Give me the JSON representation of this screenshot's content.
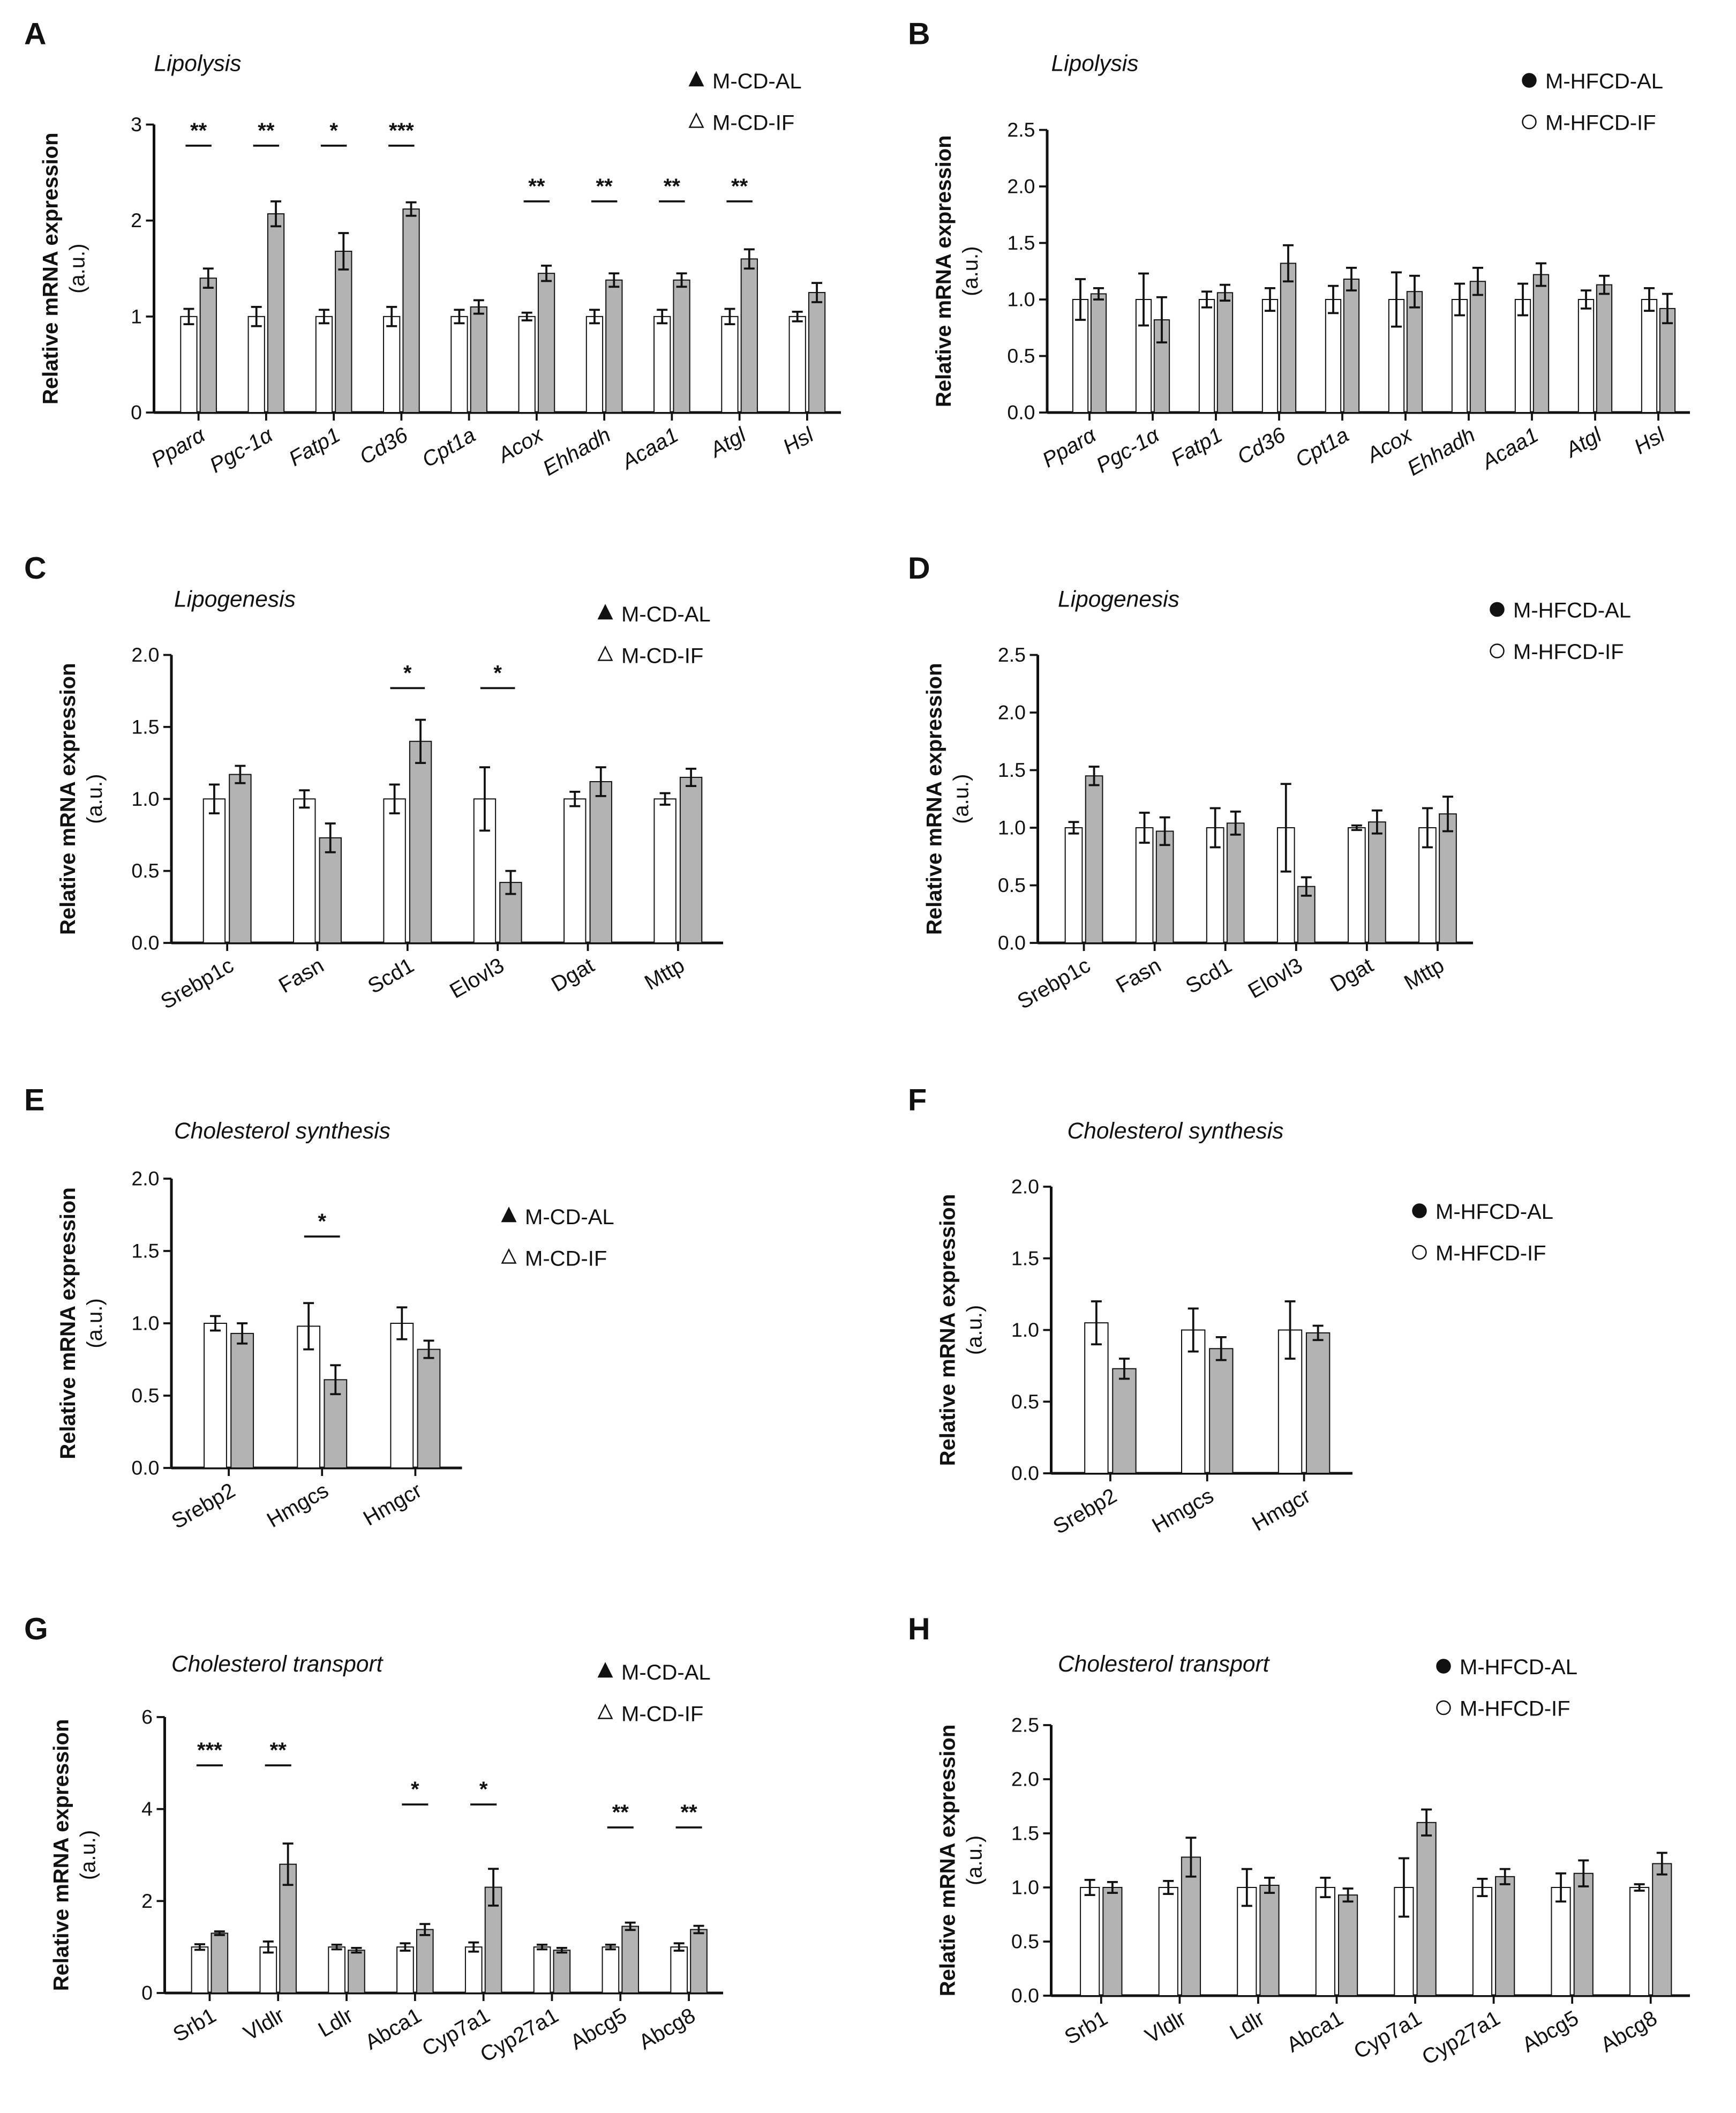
{
  "colors": {
    "al_fill": "#ffffff",
    "if_fill": "#b3b3b3",
    "stroke": "#111111"
  },
  "chart_data": [
    {
      "panel": "A",
      "type": "bar",
      "title": "Lipolysis",
      "ylabel": "Relative mRNA expression",
      "ylabel2": "(a.u.)",
      "ylim": [
        0,
        3
      ],
      "yticks": [
        "0",
        "1",
        "2",
        "3"
      ],
      "italic_x": true,
      "legend": [
        "M-CD-AL",
        "M-CD-IF"
      ],
      "marker": "triangle",
      "categories": [
        "Pparα",
        "Pgc-1α",
        "Fatp1",
        "Cd36",
        "Cpt1a",
        "Acox",
        "Ehhadh",
        "Acaa1",
        "Atgl",
        "Hsl"
      ],
      "series": [
        {
          "name": "M-CD-AL",
          "values": [
            1.0,
            1.0,
            1.0,
            1.0,
            1.0,
            1.0,
            1.0,
            1.0,
            1.0,
            1.0
          ],
          "sem": [
            0.08,
            0.1,
            0.07,
            0.1,
            0.07,
            0.04,
            0.07,
            0.07,
            0.08,
            0.05
          ]
        },
        {
          "name": "M-CD-IF",
          "values": [
            1.4,
            2.07,
            1.68,
            2.12,
            1.1,
            1.45,
            1.38,
            1.38,
            1.6,
            1.25
          ],
          "sem": [
            0.1,
            0.13,
            0.19,
            0.07,
            0.07,
            0.08,
            0.07,
            0.07,
            0.1,
            0.1
          ]
        }
      ],
      "significance": [
        "**",
        "**",
        "*",
        "***",
        "",
        "**",
        "**",
        "**",
        "**",
        ""
      ]
    },
    {
      "panel": "B",
      "type": "bar",
      "title": "Lipolysis",
      "ylabel": "Relative mRNA expression",
      "ylabel2": "(a.u.)",
      "ylim": [
        0,
        2.5
      ],
      "yticks": [
        "0.0",
        "0.5",
        "1.0",
        "1.5",
        "2.0",
        "2.5"
      ],
      "italic_x": true,
      "legend": [
        "M-HFCD-AL",
        "M-HFCD-IF"
      ],
      "marker": "circle",
      "categories": [
        "Pparα",
        "Pgc-1α",
        "Fatp1",
        "Cd36",
        "Cpt1a",
        "Acox",
        "Ehhadh",
        "Acaa1",
        "Atgl",
        "Hsl"
      ],
      "series": [
        {
          "name": "M-HFCD-AL",
          "values": [
            1.0,
            1.0,
            1.0,
            1.0,
            1.0,
            1.0,
            1.0,
            1.0,
            1.0,
            1.0
          ],
          "sem": [
            0.18,
            0.23,
            0.07,
            0.1,
            0.12,
            0.24,
            0.14,
            0.14,
            0.08,
            0.1
          ]
        },
        {
          "name": "M-HFCD-IF",
          "values": [
            1.05,
            0.82,
            1.06,
            1.32,
            1.18,
            1.07,
            1.16,
            1.22,
            1.13,
            0.92
          ],
          "sem": [
            0.05,
            0.2,
            0.07,
            0.16,
            0.1,
            0.14,
            0.12,
            0.1,
            0.08,
            0.13
          ]
        }
      ],
      "significance": [
        "",
        "",
        "",
        "",
        "",
        "",
        "",
        "",
        "",
        ""
      ]
    },
    {
      "panel": "C",
      "type": "bar",
      "title": "Lipogenesis",
      "ylabel": "Relative mRNA expression",
      "ylabel2": "(a.u.)",
      "ylim": [
        0,
        2
      ],
      "yticks": [
        "0.0",
        "0.5",
        "1.0",
        "1.5",
        "2.0"
      ],
      "italic_x": false,
      "legend": [
        "M-CD-AL",
        "M-CD-IF"
      ],
      "marker": "triangle",
      "categories": [
        "Srebp1c",
        "Fasn",
        "Scd1",
        "Elovl3",
        "Dgat",
        "Mttp"
      ],
      "series": [
        {
          "name": "M-CD-AL",
          "values": [
            1.0,
            1.0,
            1.0,
            1.0,
            1.0,
            1.0
          ],
          "sem": [
            0.1,
            0.06,
            0.1,
            0.22,
            0.05,
            0.04
          ]
        },
        {
          "name": "M-CD-IF",
          "values": [
            1.17,
            0.73,
            1.4,
            0.42,
            1.12,
            1.15
          ],
          "sem": [
            0.06,
            0.1,
            0.15,
            0.08,
            0.1,
            0.06
          ]
        }
      ],
      "significance": [
        "",
        "",
        "*",
        "*",
        "",
        ""
      ]
    },
    {
      "panel": "D",
      "type": "bar",
      "title": "Lipogenesis",
      "ylabel": "Relative mRNA expression",
      "ylabel2": "(a.u.)",
      "ylim": [
        0,
        2.5
      ],
      "yticks": [
        "0.0",
        "0.5",
        "1.0",
        "1.5",
        "2.0",
        "2.5"
      ],
      "italic_x": false,
      "legend": [
        "M-HFCD-AL",
        "M-HFCD-IF"
      ],
      "marker": "circle",
      "categories": [
        "Srebp1c",
        "Fasn",
        "Scd1",
        "Elovl3",
        "Dgat",
        "Mttp"
      ],
      "series": [
        {
          "name": "M-HFCD-AL",
          "values": [
            1.0,
            1.0,
            1.0,
            1.0,
            1.0,
            1.0
          ],
          "sem": [
            0.05,
            0.13,
            0.17,
            0.38,
            0.02,
            0.17
          ]
        },
        {
          "name": "M-HFCD-IF",
          "values": [
            1.45,
            0.97,
            1.04,
            0.49,
            1.05,
            1.12
          ],
          "sem": [
            0.08,
            0.12,
            0.1,
            0.08,
            0.1,
            0.15
          ]
        }
      ],
      "significance": [
        "",
        "",
        "",
        "",
        "",
        ""
      ]
    },
    {
      "panel": "E",
      "type": "bar",
      "title": "Cholesterol synthesis",
      "ylabel": "Relative mRNA expression",
      "ylabel2": "(a.u.)",
      "ylim": [
        0,
        2
      ],
      "yticks": [
        "0.0",
        "0.5",
        "1.0",
        "1.5",
        "2.0"
      ],
      "italic_x": false,
      "legend": [
        "M-CD-AL",
        "M-CD-IF"
      ],
      "marker": "triangle",
      "categories": [
        "Srebp2",
        "Hmgcs",
        "Hmgcr"
      ],
      "series": [
        {
          "name": "M-CD-AL",
          "values": [
            1.0,
            0.98,
            1.0
          ],
          "sem": [
            0.05,
            0.16,
            0.11
          ]
        },
        {
          "name": "M-CD-IF",
          "values": [
            0.93,
            0.61,
            0.82
          ],
          "sem": [
            0.07,
            0.1,
            0.06
          ]
        }
      ],
      "significance": [
        "",
        "*",
        ""
      ]
    },
    {
      "panel": "F",
      "type": "bar",
      "title": "Cholesterol synthesis",
      "ylabel": "Relative mRNA expression",
      "ylabel2": "(a.u.)",
      "ylim": [
        0,
        2
      ],
      "yticks": [
        "0.0",
        "0.5",
        "1.0",
        "1.5",
        "2.0"
      ],
      "italic_x": false,
      "legend": [
        "M-HFCD-AL",
        "M-HFCD-IF"
      ],
      "marker": "circle",
      "categories": [
        "Srebp2",
        "Hmgcs",
        "Hmgcr"
      ],
      "series": [
        {
          "name": "M-HFCD-AL",
          "values": [
            1.05,
            1.0,
            1.0
          ],
          "sem": [
            0.15,
            0.15,
            0.2
          ]
        },
        {
          "name": "M-HFCD-IF",
          "values": [
            0.73,
            0.87,
            0.98
          ],
          "sem": [
            0.07,
            0.08,
            0.05
          ]
        }
      ],
      "significance": [
        "",
        "",
        ""
      ]
    },
    {
      "panel": "G",
      "type": "bar",
      "title": "Cholesterol transport",
      "ylabel": "Relative mRNA expression",
      "ylabel2": "(a.u.)",
      "ylim": [
        0,
        6
      ],
      "yticks": [
        "0",
        "2",
        "4",
        "6"
      ],
      "italic_x": false,
      "legend": [
        "M-CD-AL",
        "M-CD-IF"
      ],
      "marker": "triangle",
      "categories": [
        "Srb1",
        "Vldlr",
        "Ldlr",
        "Abca1",
        "Cyp7a1",
        "Cyp27a1",
        "Abcg5",
        "Abcg8"
      ],
      "series": [
        {
          "name": "M-CD-AL",
          "values": [
            1.0,
            1.0,
            1.0,
            1.0,
            1.0,
            1.0,
            1.0,
            1.0
          ],
          "sem": [
            0.06,
            0.12,
            0.05,
            0.08,
            0.1,
            0.05,
            0.05,
            0.08
          ]
        },
        {
          "name": "M-CD-IF",
          "values": [
            1.3,
            2.8,
            0.93,
            1.38,
            2.3,
            0.93,
            1.45,
            1.38
          ],
          "sem": [
            0.04,
            0.45,
            0.05,
            0.12,
            0.4,
            0.05,
            0.08,
            0.08
          ]
        }
      ],
      "significance": [
        "***",
        "**",
        "",
        "*",
        "*",
        "",
        "**",
        "**"
      ]
    },
    {
      "panel": "H",
      "type": "bar",
      "title": "Cholesterol transport",
      "ylabel": "Relative mRNA expression",
      "ylabel2": "(a.u.)",
      "ylim": [
        0,
        2.5
      ],
      "yticks": [
        "0.0",
        "0.5",
        "1.0",
        "1.5",
        "2.0",
        "2.5"
      ],
      "italic_x": false,
      "legend": [
        "M-HFCD-AL",
        "M-HFCD-IF"
      ],
      "marker": "circle",
      "categories": [
        "Srb1",
        "Vldlr",
        "Ldlr",
        "Abca1",
        "Cyp7a1",
        "Cyp27a1",
        "Abcg5",
        "Abcg8"
      ],
      "series": [
        {
          "name": "M-HFCD-AL",
          "values": [
            1.0,
            1.0,
            1.0,
            1.0,
            1.0,
            1.0,
            1.0,
            1.0
          ],
          "sem": [
            0.07,
            0.06,
            0.17,
            0.09,
            0.27,
            0.08,
            0.13,
            0.03
          ]
        },
        {
          "name": "M-HFCD-IF",
          "values": [
            1.0,
            1.28,
            1.02,
            0.93,
            1.6,
            1.1,
            1.13,
            1.22
          ],
          "sem": [
            0.05,
            0.18,
            0.07,
            0.06,
            0.12,
            0.07,
            0.12,
            0.1
          ]
        }
      ],
      "significance": [
        "",
        "",
        "",
        "",
        "",
        "",
        "",
        ""
      ]
    }
  ]
}
